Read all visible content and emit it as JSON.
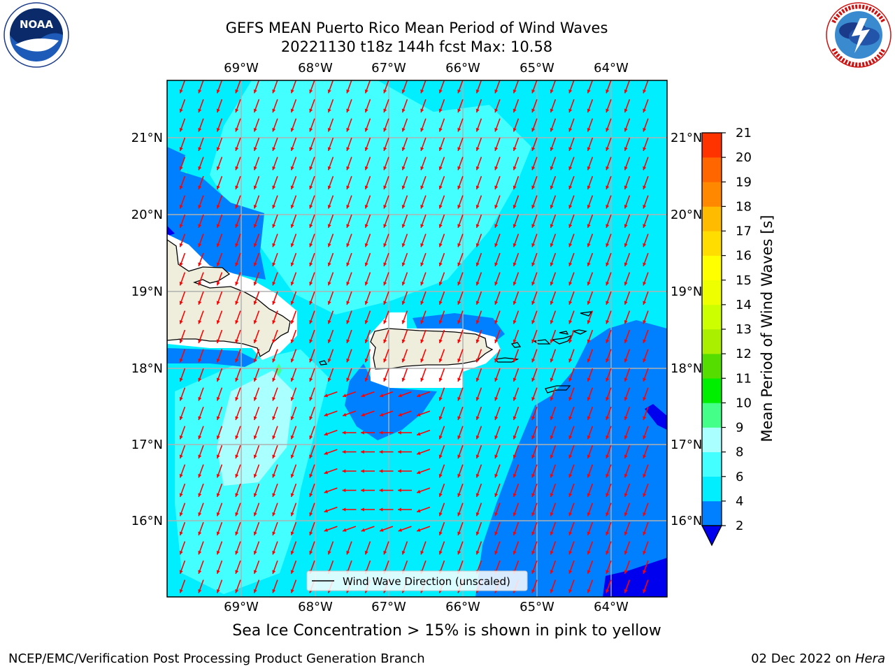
{
  "header": {
    "title_line1": "GEFS MEAN Puerto Rico Mean Period of Wind Waves",
    "title_line2": "20221130 t18z 144h fcst   Max: 10.58"
  },
  "logos": {
    "left": {
      "icon": "noaa-logo",
      "text": "NOAA",
      "ring_text": "NATIONAL OCEANIC AND ATMOSPHERIC ADMINISTRATION · U.S. DEPARTMENT OF COMMERCE"
    },
    "right": {
      "icon": "national-weather-service-logo",
      "ring_text": "NATIONAL WEATHER SERVICE"
    }
  },
  "map": {
    "lon_labels": [
      "69°W",
      "68°W",
      "67°W",
      "66°W",
      "65°W",
      "64°W"
    ],
    "lat_labels": [
      "21°N",
      "20°N",
      "19°N",
      "18°N",
      "17°N",
      "16°N"
    ],
    "legend_label": "Wind Wave Direction (unscaled)",
    "arrow_color": "#ff0000",
    "land_color": "#efeedd",
    "grid_color": "#b0b0b0"
  },
  "colorbar": {
    "label": "Mean Period of Wind Waves [s]",
    "ticks": [
      "2",
      "4",
      "6",
      "8",
      "9",
      "10",
      "11",
      "12",
      "13",
      "14",
      "15",
      "16",
      "17",
      "18",
      "19",
      "20",
      "21"
    ],
    "colors": [
      "#0080ff",
      "#00eeff",
      "#44ffff",
      "#aaffff",
      "#44ff88",
      "#00ee00",
      "#55dd00",
      "#aaee00",
      "#ccff00",
      "#eeff00",
      "#ffff00",
      "#ffdd00",
      "#ffbb00",
      "#ff8800",
      "#ff6600",
      "#ff3300"
    ],
    "extend_min_color": "#0000ee"
  },
  "caption": "Sea Ice Concentration > 15% is shown in pink to yellow",
  "footer": {
    "left": "NCEP/EMC/Verification Post Processing Product Generation Branch",
    "right_date": "02 Dec 2022 on ",
    "right_host": "Hera"
  }
}
